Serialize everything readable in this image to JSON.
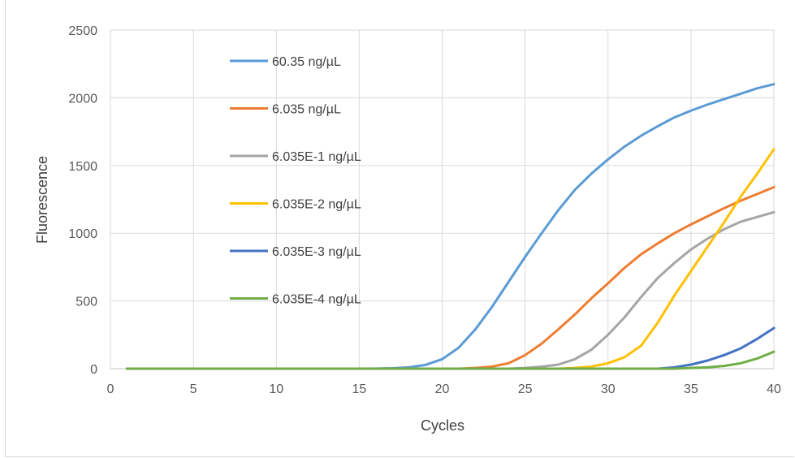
{
  "chart_data": {
    "type": "line",
    "title": "",
    "xlabel": "Cycles",
    "ylabel": "Fluorescence",
    "xlim": [
      0,
      40
    ],
    "ylim": [
      0,
      2500
    ],
    "x_ticks": [
      "0",
      "5",
      "10",
      "15",
      "20",
      "25",
      "30",
      "35",
      "40"
    ],
    "y_ticks": [
      "0",
      "500",
      "1000",
      "1500",
      "2000",
      "2500"
    ],
    "grid": "vertical and horizontal",
    "legend_position": "upper-left inside plot",
    "x": [
      1,
      2,
      3,
      4,
      5,
      6,
      7,
      8,
      9,
      10,
      11,
      12,
      13,
      14,
      15,
      16,
      17,
      18,
      19,
      20,
      21,
      22,
      23,
      24,
      25,
      26,
      27,
      28,
      29,
      30,
      31,
      32,
      33,
      34,
      35,
      36,
      37,
      38,
      39,
      40
    ],
    "series": [
      {
        "name": "60.35 ng/µL",
        "color": "#5b9bd5",
        "values": [
          0,
          0,
          0,
          0,
          0,
          0,
          0,
          0,
          0,
          0,
          0,
          0,
          0,
          0,
          0,
          1,
          3,
          10,
          28,
          70,
          155,
          290,
          455,
          640,
          825,
          1000,
          1170,
          1320,
          1440,
          1545,
          1640,
          1720,
          1790,
          1855,
          1905,
          1950,
          1990,
          2030,
          2070,
          2100
        ]
      },
      {
        "name": "6.035 ng/µL",
        "color": "#ed7d31",
        "values": [
          0,
          0,
          0,
          0,
          0,
          0,
          0,
          0,
          0,
          0,
          0,
          0,
          0,
          0,
          0,
          0,
          0,
          0,
          0,
          0,
          0,
          5,
          15,
          40,
          100,
          185,
          290,
          400,
          520,
          630,
          745,
          845,
          925,
          1000,
          1065,
          1125,
          1185,
          1240,
          1290,
          1340
        ]
      },
      {
        "name": "6.035E-1 ng/µL",
        "color": "#a5a5a5",
        "values": [
          0,
          0,
          0,
          0,
          0,
          0,
          0,
          0,
          0,
          0,
          0,
          0,
          0,
          0,
          0,
          0,
          0,
          0,
          0,
          0,
          0,
          0,
          0,
          0,
          5,
          15,
          30,
          70,
          140,
          250,
          380,
          530,
          670,
          780,
          880,
          960,
          1030,
          1085,
          1120,
          1155
        ]
      },
      {
        "name": "6.035E-2 ng/µL",
        "color": "#ffc000",
        "values": [
          0,
          0,
          0,
          0,
          0,
          0,
          0,
          0,
          0,
          0,
          0,
          0,
          0,
          0,
          0,
          0,
          0,
          0,
          0,
          0,
          0,
          0,
          0,
          0,
          0,
          0,
          0,
          5,
          15,
          40,
          85,
          170,
          340,
          540,
          720,
          900,
          1080,
          1270,
          1440,
          1620
        ]
      },
      {
        "name": "6.035E-3 ng/µL",
        "color": "#4472c4",
        "values": [
          0,
          0,
          0,
          0,
          0,
          0,
          0,
          0,
          0,
          0,
          0,
          0,
          0,
          0,
          0,
          0,
          0,
          0,
          0,
          0,
          0,
          0,
          0,
          0,
          0,
          0,
          0,
          0,
          0,
          0,
          0,
          0,
          0,
          10,
          30,
          60,
          100,
          150,
          220,
          300
        ]
      },
      {
        "name": "6.035E-4 ng/µL",
        "color": "#70ad47",
        "values": [
          0,
          0,
          0,
          0,
          0,
          0,
          0,
          0,
          0,
          0,
          0,
          0,
          0,
          0,
          0,
          0,
          0,
          0,
          0,
          0,
          0,
          0,
          0,
          0,
          0,
          0,
          0,
          0,
          0,
          0,
          0,
          0,
          0,
          0,
          5,
          10,
          20,
          40,
          75,
          125
        ]
      }
    ]
  }
}
